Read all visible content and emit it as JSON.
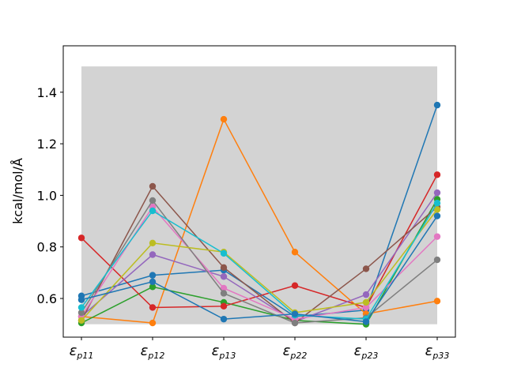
{
  "chart_data": {
    "type": "line",
    "title": "",
    "xlabel": "",
    "ylabel": "kcal/mol/Å",
    "categories": [
      {
        "base": "ε",
        "sub": "p11"
      },
      {
        "base": "ε",
        "sub": "p12"
      },
      {
        "base": "ε",
        "sub": "p13"
      },
      {
        "base": "ε",
        "sub": "p22"
      },
      {
        "base": "ε",
        "sub": "p23"
      },
      {
        "base": "ε",
        "sub": "p33"
      }
    ],
    "ylim": [
      0.45,
      1.58
    ],
    "yticks": [
      "0.6",
      "0.8",
      "1.0",
      "1.2",
      "1.4"
    ],
    "ytick_values": [
      0.6,
      0.8,
      1.0,
      1.2,
      1.4
    ],
    "grid": false,
    "legend": "none",
    "shaded_band": {
      "x_from": 0,
      "x_to": 5,
      "y_from": 0.5,
      "y_to": 1.5,
      "color": "#d3d3d3"
    },
    "series": [
      {
        "color": "#1f77b4",
        "values": [
          0.61,
          0.69,
          0.71,
          0.53,
          0.555,
          1.35
        ]
      },
      {
        "color": "#ff7f0e",
        "values": [
          0.53,
          0.505,
          1.295,
          0.78,
          0.54,
          0.59
        ]
      },
      {
        "color": "#2ca02c",
        "values": [
          0.505,
          0.645,
          0.585,
          0.515,
          0.5,
          0.985
        ]
      },
      {
        "color": "#d62728",
        "values": [
          0.835,
          0.565,
          0.57,
          0.65,
          0.565,
          1.08
        ]
      },
      {
        "color": "#9467bd",
        "values": [
          0.53,
          0.77,
          0.685,
          0.51,
          0.615,
          1.01
        ]
      },
      {
        "color": "#8c564b",
        "values": [
          0.515,
          1.035,
          0.72,
          0.505,
          0.715,
          0.955
        ]
      },
      {
        "color": "#e377c2",
        "values": [
          0.53,
          0.955,
          0.64,
          0.52,
          0.565,
          0.84
        ]
      },
      {
        "color": "#7f7f7f",
        "values": [
          0.545,
          0.98,
          0.62,
          0.505,
          0.525,
          0.75
        ]
      },
      {
        "color": "#bcbd22",
        "values": [
          0.515,
          0.815,
          0.78,
          0.545,
          0.585,
          0.945
        ]
      },
      {
        "color": "#17becf",
        "values": [
          0.565,
          0.94,
          0.775,
          0.535,
          0.52,
          0.97
        ]
      },
      {
        "color": "#1f77b4",
        "values": [
          0.595,
          0.665,
          0.52,
          0.54,
          0.51,
          0.92
        ]
      }
    ]
  }
}
